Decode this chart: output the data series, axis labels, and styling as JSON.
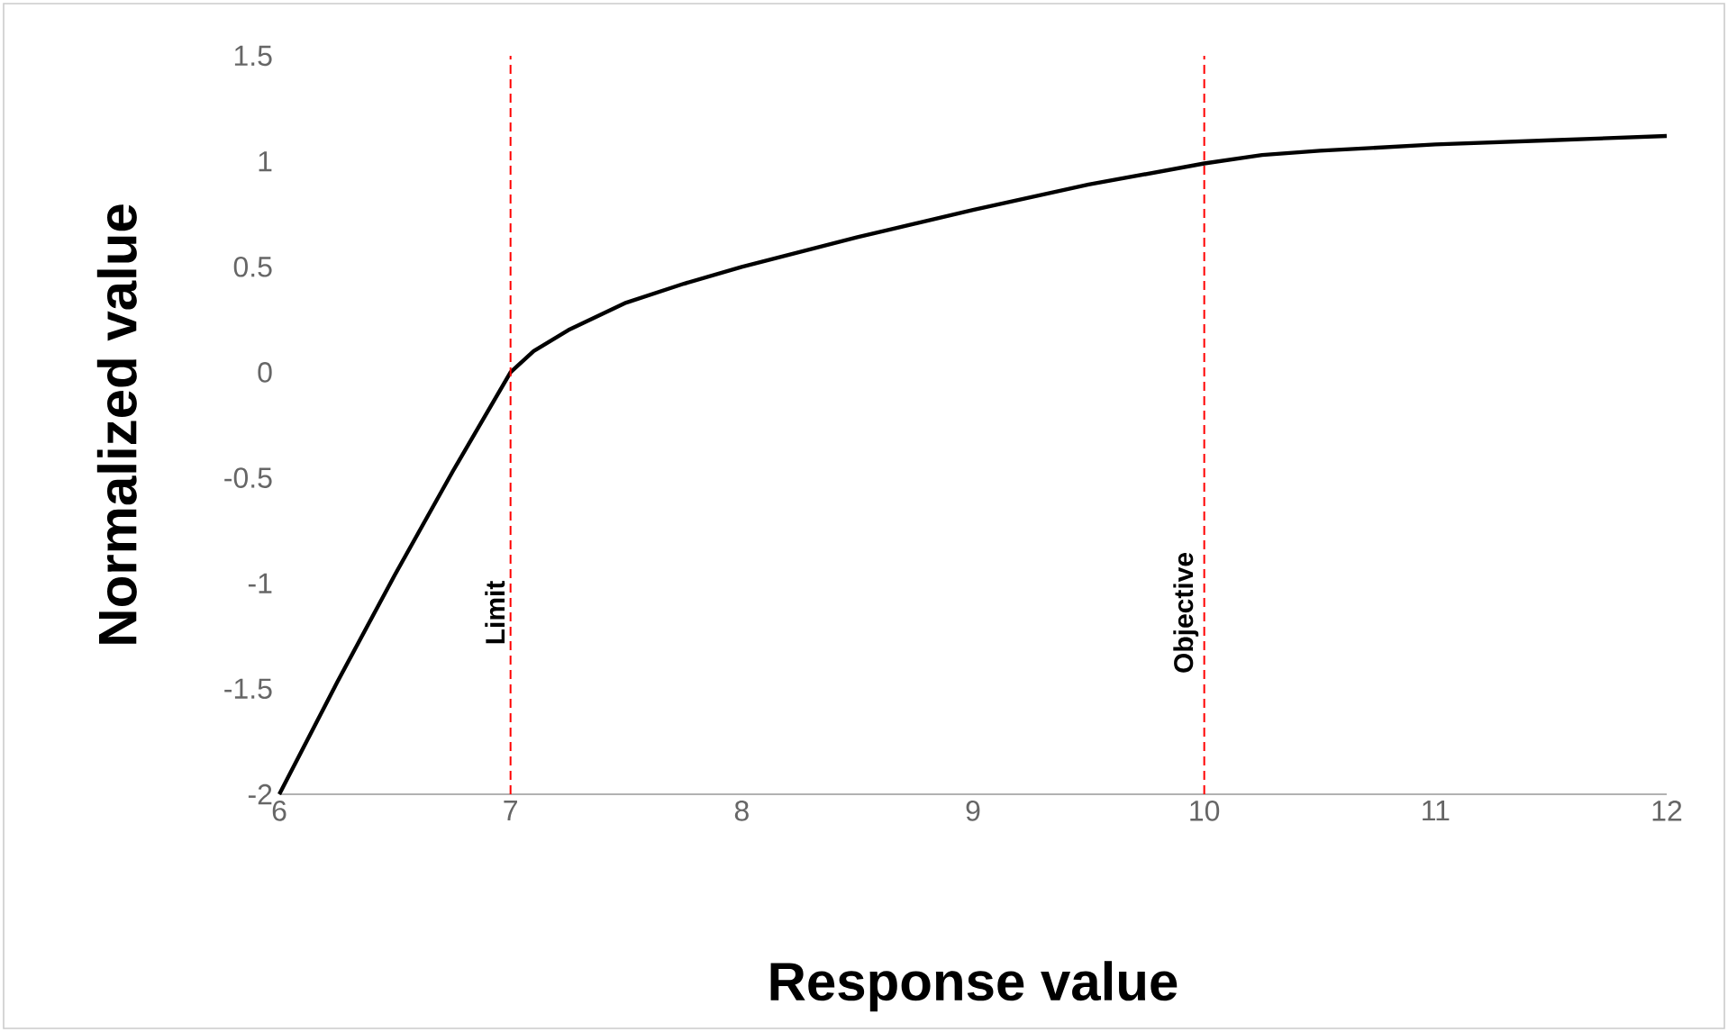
{
  "chart_data": {
    "type": "line",
    "xlabel": "Response value",
    "ylabel": "Normalized value",
    "x": [
      6,
      6.25,
      6.5,
      6.75,
      7,
      7.1,
      7.25,
      7.5,
      7.75,
      8,
      8.5,
      9,
      9.5,
      10,
      10.25,
      10.5,
      11,
      11.5,
      12
    ],
    "series": [
      {
        "color": "#000000",
        "values": [
          -2,
          -1.47,
          -0.96,
          -0.47,
          0,
          0.1,
          0.2,
          0.33,
          0.42,
          0.5,
          0.64,
          0.77,
          0.89,
          0.99,
          1.03,
          1.05,
          1.08,
          1.1,
          1.12
        ]
      }
    ],
    "xlim": [
      6,
      12
    ],
    "ylim": [
      -2,
      1.5
    ],
    "xticks": [
      6,
      7,
      8,
      9,
      10,
      11,
      12
    ],
    "yticks": [
      -2,
      -1.5,
      -1,
      -0.5,
      0,
      0.5,
      1,
      1.5
    ],
    "ref_lines": [
      {
        "axis": "x",
        "value": 7,
        "label": "Limit",
        "color": "#ff0000",
        "line_style": "dashed"
      },
      {
        "axis": "x",
        "value": 10,
        "label": "Objective",
        "color": "#ff0000",
        "line_style": "dashed"
      }
    ]
  }
}
